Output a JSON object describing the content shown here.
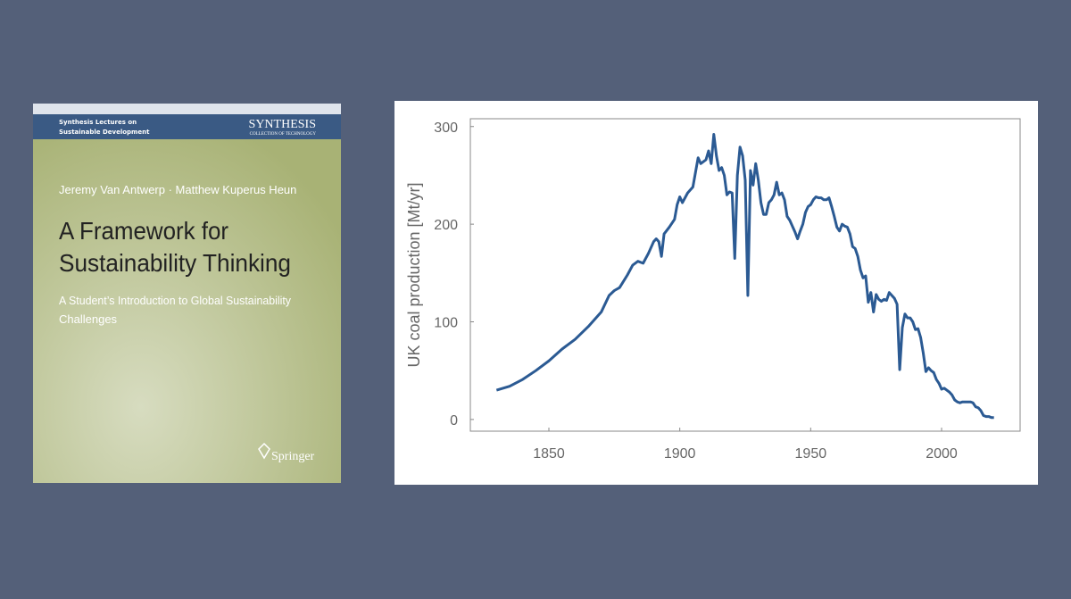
{
  "cover": {
    "series_lines": [
      "Synthesis Lectures on",
      "Sustainable Development"
    ],
    "collection": "SYNTHESIS",
    "collection_sub": "COLLECTION OF TECHNOLOGY",
    "authors": "Jeremy Van Antwerp · Matthew Kuperus Heun",
    "title_lines": [
      "A Framework for",
      "Sustainability Thinking"
    ],
    "subtitle_lines": [
      "A Student’s Introduction to Global Sustainability",
      "Challenges"
    ],
    "publisher": "Springer"
  },
  "chart_data": {
    "type": "line",
    "ylabel": "UK coal production [Mt/yr]",
    "color": "#2b5a93",
    "xlim": [
      1820,
      2030
    ],
    "ylim": [
      -12,
      308
    ],
    "xticks": [
      1850,
      1900,
      1950,
      2000
    ],
    "yticks": [
      0,
      100,
      200,
      300
    ],
    "grid": false,
    "x": [
      1830,
      1835,
      1840,
      1845,
      1850,
      1855,
      1860,
      1865,
      1870,
      1873,
      1875,
      1877,
      1880,
      1882,
      1884,
      1886,
      1888,
      1890,
      1891,
      1892,
      1893,
      1894,
      1896,
      1898,
      1899,
      1900,
      1901,
      1903,
      1905,
      1907,
      1908,
      1910,
      1911,
      1912,
      1913,
      1914,
      1915,
      1916,
      1917,
      1918,
      1919,
      1920,
      1921,
      1922,
      1923,
      1924,
      1925,
      1926,
      1927,
      1928,
      1929,
      1930,
      1931,
      1932,
      1933,
      1934,
      1935,
      1936,
      1937,
      1938,
      1939,
      1940,
      1941,
      1942,
      1943,
      1944,
      1945,
      1946,
      1947,
      1948,
      1949,
      1950,
      1951,
      1952,
      1953,
      1954,
      1955,
      1956,
      1957,
      1958,
      1959,
      1960,
      1961,
      1962,
      1963,
      1964,
      1965,
      1966,
      1967,
      1968,
      1969,
      1970,
      1971,
      1972,
      1973,
      1974,
      1975,
      1976,
      1977,
      1978,
      1979,
      1980,
      1981,
      1982,
      1983,
      1984,
      1985,
      1986,
      1987,
      1988,
      1989,
      1990,
      1991,
      1992,
      1993,
      1994,
      1995,
      1996,
      1997,
      1998,
      1999,
      2000,
      2001,
      2002,
      2003,
      2004,
      2005,
      2006,
      2007,
      2008,
      2009,
      2010,
      2011,
      2012,
      2013,
      2014,
      2015,
      2016,
      2017,
      2018,
      2019,
      2020
    ],
    "values": [
      30,
      34,
      41,
      50,
      60,
      72,
      82,
      95,
      110,
      127,
      132,
      135,
      148,
      158,
      162,
      160,
      170,
      182,
      185,
      182,
      167,
      190,
      197,
      205,
      220,
      228,
      222,
      232,
      238,
      268,
      262,
      266,
      275,
      262,
      292,
      270,
      255,
      258,
      250,
      230,
      233,
      232,
      165,
      250,
      279,
      270,
      245,
      127,
      255,
      240,
      262,
      245,
      222,
      210,
      210,
      222,
      225,
      230,
      243,
      230,
      232,
      225,
      208,
      204,
      198,
      192,
      185,
      193,
      200,
      212,
      218,
      220,
      225,
      228,
      227,
      227,
      225,
      225,
      227,
      218,
      208,
      197,
      193,
      200,
      198,
      197,
      190,
      177,
      175,
      167,
      153,
      145,
      147,
      120,
      130,
      110,
      128,
      123,
      121,
      123,
      122,
      130,
      127,
      124,
      118,
      51,
      94,
      108,
      104,
      104,
      100,
      92,
      93,
      84,
      68,
      49,
      53,
      50,
      48,
      41,
      37,
      31,
      32,
      30,
      28,
      25,
      20,
      18,
      17,
      18,
      18,
      18,
      18,
      17,
      13,
      12,
      9,
      4,
      3,
      3,
      2,
      2
    ]
  }
}
